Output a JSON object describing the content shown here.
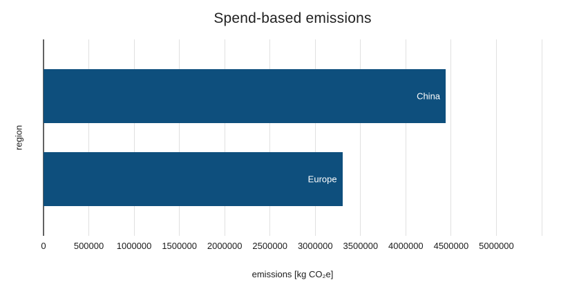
{
  "chart_data": {
    "type": "bar",
    "orientation": "horizontal",
    "title": "Spend-based emissions",
    "xlabel": "emissions [kg CO₂e]",
    "ylabel": "region",
    "categories": [
      "China",
      "Europe"
    ],
    "values": [
      4440000,
      3300000
    ],
    "bar_labels": [
      "China",
      "Europe"
    ],
    "xticks": [
      0,
      500000,
      1000000,
      1500000,
      2000000,
      2500000,
      3000000,
      3500000,
      4000000,
      4500000,
      5000000
    ],
    "xlim": [
      0,
      5500000
    ],
    "grid": true,
    "legend": "none",
    "colors": {
      "bar": "#0e4f7d",
      "bar_label": "#ffffff",
      "gridline": "#e0e0e0",
      "axis_line": "#616161",
      "title_text": "#212121",
      "tick_text": "#1a1a1a",
      "label_text": "#1a1a1a",
      "background": "#ffffff"
    }
  }
}
